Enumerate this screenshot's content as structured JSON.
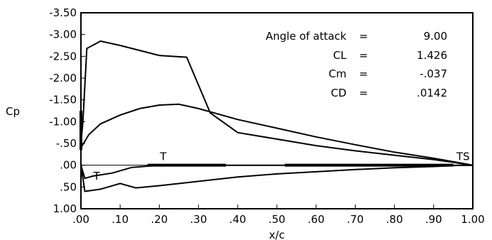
{
  "chart_data": {
    "type": "line",
    "xlabel": "x/c",
    "ylabel": "Cp",
    "xlim": [
      0.0,
      1.0
    ],
    "ylim": [
      -3.5,
      1.0
    ],
    "y_inverted": true,
    "grid": false,
    "x_ticks": [
      ".00",
      ".10",
      ".20",
      ".30",
      ".40",
      ".50",
      ".60",
      ".70",
      ".80",
      ".90",
      "1.00"
    ],
    "x_tick_values": [
      0.0,
      0.1,
      0.2,
      0.3,
      0.4,
      0.5,
      0.6,
      0.7,
      0.8,
      0.9,
      1.0
    ],
    "y_ticks": [
      "-3.50",
      "-3.00",
      "-2.50",
      "-2.00",
      "-1.50",
      "-1.00",
      "-.50",
      ".00",
      ".50",
      "1.00"
    ],
    "y_tick_values": [
      -3.5,
      -3.0,
      -2.5,
      -2.0,
      -1.5,
      -1.0,
      -0.5,
      0.0,
      0.5,
      1.0
    ],
    "annotations": [
      {
        "label": "Angle of attack",
        "eq": "=",
        "value": "9.00"
      },
      {
        "label": "CL",
        "eq": "=",
        "value": "1.426"
      },
      {
        "label": "Cm",
        "eq": "=",
        "value": "-.037"
      },
      {
        "label": "CD",
        "eq": "=",
        "value": ".0142"
      }
    ],
    "markers": [
      {
        "text": "T",
        "x": 0.21,
        "y": -0.12
      },
      {
        "text": "T",
        "x": 0.04,
        "y": 0.33
      },
      {
        "text": "TS",
        "x": 0.975,
        "y": -0.12
      }
    ],
    "series": [
      {
        "points": [
          [
            0.0,
            -0.5
          ],
          [
            0.005,
            -1.0
          ],
          [
            0.015,
            -2.68
          ],
          [
            0.05,
            -2.85
          ],
          [
            0.1,
            -2.75
          ],
          [
            0.2,
            -2.52
          ],
          [
            0.27,
            -2.48
          ],
          [
            0.33,
            -1.2
          ],
          [
            0.4,
            -0.75
          ],
          [
            0.5,
            -0.6
          ],
          [
            0.6,
            -0.45
          ],
          [
            0.7,
            -0.33
          ],
          [
            0.8,
            -0.23
          ],
          [
            0.9,
            -0.13
          ],
          [
            0.97,
            -0.04
          ],
          [
            1.0,
            0.0
          ]
        ]
      },
      {
        "points": [
          [
            0.0,
            -0.4
          ],
          [
            0.02,
            -0.7
          ],
          [
            0.05,
            -0.95
          ],
          [
            0.1,
            -1.15
          ],
          [
            0.15,
            -1.3
          ],
          [
            0.2,
            -1.38
          ],
          [
            0.25,
            -1.4
          ],
          [
            0.3,
            -1.3
          ],
          [
            0.4,
            -1.05
          ],
          [
            0.5,
            -0.85
          ],
          [
            0.6,
            -0.65
          ],
          [
            0.7,
            -0.47
          ],
          [
            0.8,
            -0.3
          ],
          [
            0.9,
            -0.16
          ],
          [
            0.97,
            -0.05
          ],
          [
            1.0,
            0.0
          ]
        ]
      },
      {
        "points": [
          [
            0.0,
            0.0
          ],
          [
            0.01,
            0.3
          ],
          [
            0.03,
            0.25
          ],
          [
            0.08,
            0.18
          ],
          [
            0.13,
            0.05
          ],
          [
            0.2,
            0.0
          ],
          [
            0.3,
            0.0
          ],
          [
            0.4,
            0.0
          ],
          [
            0.5,
            0.0
          ],
          [
            0.6,
            0.0
          ],
          [
            0.7,
            0.0
          ],
          [
            0.8,
            0.0
          ],
          [
            0.9,
            0.0
          ],
          [
            1.0,
            0.0
          ]
        ]
      },
      {
        "points": [
          [
            0.0,
            0.0
          ],
          [
            0.01,
            0.6
          ],
          [
            0.05,
            0.55
          ],
          [
            0.1,
            0.42
          ],
          [
            0.14,
            0.52
          ],
          [
            0.2,
            0.47
          ],
          [
            0.3,
            0.37
          ],
          [
            0.4,
            0.27
          ],
          [
            0.5,
            0.2
          ],
          [
            0.6,
            0.15
          ],
          [
            0.7,
            0.1
          ],
          [
            0.8,
            0.06
          ],
          [
            0.9,
            0.03
          ],
          [
            0.97,
            0.0
          ],
          [
            1.0,
            0.0
          ]
        ]
      }
    ]
  }
}
